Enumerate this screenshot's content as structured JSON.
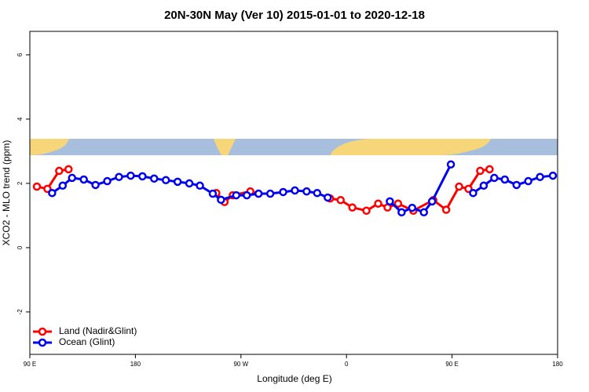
{
  "chart_data": {
    "type": "line",
    "title": "20N-30N May (Ver 10)   2015-01-01 to 2020-12-18",
    "xlabel": "Longitude (deg E)",
    "ylabel": "XCO2 - MLO trend (ppm)",
    "xlim": [
      90,
      540
    ],
    "ylim": [
      -3.32,
      6.73
    ],
    "xticks": [
      {
        "value": 90,
        "label": "90 E"
      },
      180,
      {
        "value": 270,
        "label": "90 W"
      },
      {
        "value": 360,
        "label": "0"
      },
      {
        "value": 450,
        "label": "90 E"
      },
      {
        "value": 540,
        "label": "180"
      }
    ],
    "yticks": [
      -2,
      0,
      2,
      4,
      6
    ],
    "legend": "bottom-left",
    "series": [
      {
        "name": "Land (Nadir&Glint)",
        "color": "#ff0000",
        "x": [
          96,
          105,
          115,
          123,
          null,
          249,
          256,
          263,
          278,
          285,
          null,
          346,
          355,
          365,
          377,
          387,
          395,
          404,
          417,
          434,
          445,
          456,
          464,
          474,
          482
        ],
        "values": [
          1.9,
          1.83,
          2.39,
          2.44,
          null,
          1.7,
          1.42,
          1.63,
          1.75,
          1.68,
          null,
          1.53,
          1.48,
          1.25,
          1.15,
          1.37,
          1.25,
          1.37,
          1.15,
          1.48,
          1.18,
          1.9,
          1.83,
          2.39,
          2.44
        ]
      },
      {
        "name": "Ocean (Glint)",
        "color": "#0000ee",
        "x": [
          109,
          118,
          126,
          136,
          146,
          156,
          166,
          176,
          186,
          196,
          206,
          216,
          226,
          235,
          246,
          253,
          266,
          275,
          285,
          295,
          306,
          316,
          326,
          335,
          344,
          null,
          397,
          407,
          416,
          426,
          433,
          449,
          null,
          468,
          477,
          486,
          495,
          505,
          515,
          525,
          536
        ],
        "values": [
          1.7,
          1.93,
          2.17,
          2.12,
          1.95,
          2.07,
          2.2,
          2.24,
          2.22,
          2.15,
          2.1,
          2.05,
          2.0,
          1.93,
          1.68,
          1.49,
          1.63,
          1.63,
          1.68,
          1.68,
          1.73,
          1.78,
          1.75,
          1.7,
          1.56,
          null,
          1.44,
          1.1,
          1.24,
          1.1,
          1.44,
          2.59,
          null,
          1.7,
          1.93,
          2.17,
          2.12,
          1.95,
          2.07,
          2.2,
          2.24
        ]
      }
    ]
  }
}
